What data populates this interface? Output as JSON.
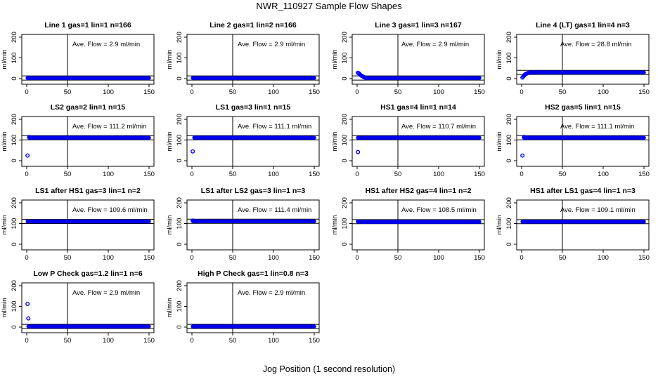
{
  "figure": {
    "title": "NWR_110927  Sample Flow Shapes",
    "bottom_label": "Jog Position (1 second resolution)"
  },
  "colors": {
    "points": "#0000ee",
    "axes": "#000000",
    "background": "#ffffff"
  },
  "chart_data": [
    {
      "type": "scatter",
      "title": "Line 1 gas=1 lin=1 n=166",
      "ylabel": "ml/min",
      "annotation": "Ave. Flow =  2.9  ml/min",
      "xlim": [
        0,
        150
      ],
      "ylim": [
        0,
        200
      ],
      "xticks": [
        0,
        50,
        100,
        150
      ],
      "yticks": [
        0,
        100,
        200
      ],
      "vline": 50,
      "hlines": [
        -7,
        13
      ],
      "baseline": 3,
      "points": []
    },
    {
      "type": "scatter",
      "title": "Line 2 gas=1 lin=2 n=166",
      "ylabel": "ml/min",
      "annotation": "Ave. Flow =  2.9  ml/min",
      "xlim": [
        0,
        150
      ],
      "ylim": [
        0,
        200
      ],
      "xticks": [
        0,
        50,
        100,
        150
      ],
      "yticks": [
        0,
        100,
        200
      ],
      "vline": 50,
      "hlines": [
        -7,
        13
      ],
      "baseline": 3,
      "points": []
    },
    {
      "type": "scatter",
      "title": "Line 3 gas=1 lin=3 n=167",
      "ylabel": "ml/min",
      "annotation": "Ave. Flow =  2.9  ml/min",
      "xlim": [
        0,
        150
      ],
      "ylim": [
        0,
        200
      ],
      "xticks": [
        0,
        50,
        100,
        150
      ],
      "yticks": [
        0,
        100,
        200
      ],
      "vline": 50,
      "hlines": [
        -7,
        13
      ],
      "baseline": 3,
      "points": [
        [
          1,
          28
        ],
        [
          2,
          26
        ],
        [
          3,
          22
        ],
        [
          4,
          18
        ],
        [
          5,
          15
        ],
        [
          6,
          12
        ],
        [
          7,
          10
        ],
        [
          8,
          8
        ],
        [
          9,
          6
        ],
        [
          10,
          5
        ]
      ]
    },
    {
      "type": "scatter",
      "title": "Line 4 (LT) gas=1 lin=4 n=3",
      "ylabel": "ml/min",
      "annotation": "Ave. Flow =  28.8  ml/min",
      "xlim": [
        0,
        150
      ],
      "ylim": [
        0,
        200
      ],
      "xticks": [
        0,
        50,
        100,
        150
      ],
      "yticks": [
        0,
        100,
        200
      ],
      "vline": 50,
      "hlines": [
        20,
        40
      ],
      "baseline": 30,
      "points": [
        [
          1,
          5
        ],
        [
          2,
          10
        ],
        [
          3,
          15
        ],
        [
          4,
          19
        ],
        [
          5,
          22
        ],
        [
          6,
          24
        ],
        [
          7,
          26
        ],
        [
          8,
          27
        ],
        [
          9,
          28
        ],
        [
          10,
          29
        ]
      ]
    },
    {
      "type": "scatter",
      "title": "LS2 gas=2 lin=1 n=15",
      "ylabel": "ml/min",
      "annotation": "Ave. Flow =  111.2  ml/min",
      "xlim": [
        0,
        150
      ],
      "ylim": [
        0,
        200
      ],
      "xticks": [
        0,
        50,
        100,
        150
      ],
      "yticks": [
        0,
        100,
        200
      ],
      "vline": 50,
      "hlines": [
        101,
        121
      ],
      "baseline": 111,
      "points": [
        [
          1,
          25
        ],
        [
          3,
          115
        ]
      ]
    },
    {
      "type": "scatter",
      "title": "LS1 gas=3 lin=1 n=15",
      "ylabel": "ml/min",
      "annotation": "Ave. Flow =  111.1  ml/min",
      "xlim": [
        0,
        150
      ],
      "ylim": [
        0,
        200
      ],
      "xticks": [
        0,
        50,
        100,
        150
      ],
      "yticks": [
        0,
        100,
        200
      ],
      "vline": 50,
      "hlines": [
        101,
        121
      ],
      "baseline": 111,
      "points": [
        [
          1,
          45
        ],
        [
          3,
          112
        ]
      ]
    },
    {
      "type": "scatter",
      "title": "HS1 gas=4 lin=1 n=14",
      "ylabel": "ml/min",
      "annotation": "Ave. Flow =  110.7  ml/min",
      "xlim": [
        0,
        150
      ],
      "ylim": [
        0,
        200
      ],
      "xticks": [
        0,
        50,
        100,
        150
      ],
      "yticks": [
        0,
        100,
        200
      ],
      "vline": 50,
      "hlines": [
        101,
        121
      ],
      "baseline": 111,
      "points": [
        [
          1,
          42
        ]
      ]
    },
    {
      "type": "scatter",
      "title": "HS2 gas=5 lin=1 n=15",
      "ylabel": "ml/min",
      "annotation": "Ave. Flow =  111.1  ml/min",
      "xlim": [
        0,
        150
      ],
      "ylim": [
        0,
        200
      ],
      "xticks": [
        0,
        50,
        100,
        150
      ],
      "yticks": [
        0,
        100,
        200
      ],
      "vline": 50,
      "hlines": [
        101,
        121
      ],
      "baseline": 111,
      "points": [
        [
          1,
          25
        ],
        [
          3,
          115
        ]
      ]
    },
    {
      "type": "scatter",
      "title": "LS1 after HS1 gas=3 lin=1 n=2",
      "ylabel": "ml/min",
      "annotation": "Ave. Flow =  109.6  ml/min",
      "xlim": [
        0,
        150
      ],
      "ylim": [
        0,
        200
      ],
      "xticks": [
        0,
        50,
        100,
        150
      ],
      "yticks": [
        0,
        100,
        200
      ],
      "vline": 50,
      "hlines": [
        100,
        120
      ],
      "baseline": 110,
      "points": []
    },
    {
      "type": "scatter",
      "title": "LS1 after LS2 gas=3 lin=1 n=3",
      "ylabel": "ml/min",
      "annotation": "Ave. Flow =  111.4  ml/min",
      "xlim": [
        0,
        150
      ],
      "ylim": [
        0,
        200
      ],
      "xticks": [
        0,
        50,
        100,
        150
      ],
      "yticks": [
        0,
        100,
        200
      ],
      "vline": 50,
      "hlines": [
        101,
        121
      ],
      "baseline": 111,
      "points": [
        [
          1,
          114
        ],
        [
          2,
          113
        ]
      ]
    },
    {
      "type": "scatter",
      "title": "HS1 after HS2 gas=4 lin=1 n=2",
      "ylabel": "ml/min",
      "annotation": "Ave. Flow =  108.5  ml/min",
      "xlim": [
        0,
        150
      ],
      "ylim": [
        0,
        200
      ],
      "xticks": [
        0,
        50,
        100,
        150
      ],
      "yticks": [
        0,
        100,
        200
      ],
      "vline": 50,
      "hlines": [
        99,
        119
      ],
      "baseline": 108,
      "points": [
        [
          1,
          110
        ],
        [
          2,
          109
        ]
      ]
    },
    {
      "type": "scatter",
      "title": "HS1 after LS1 gas=4 lin=1 n=3",
      "ylabel": "ml/min",
      "annotation": "Ave. Flow =  109.1  ml/min",
      "xlim": [
        0,
        150
      ],
      "ylim": [
        0,
        200
      ],
      "xticks": [
        0,
        50,
        100,
        150
      ],
      "yticks": [
        0,
        100,
        200
      ],
      "vline": 50,
      "hlines": [
        99,
        119
      ],
      "baseline": 109,
      "points": []
    },
    {
      "type": "scatter",
      "title": "Low P Check gas=1.2 lin=1 n=6",
      "ylabel": "ml/min",
      "annotation": "Ave. Flow =  2.9  ml/min",
      "xlim": [
        0,
        150
      ],
      "ylim": [
        0,
        200
      ],
      "xticks": [
        0,
        50,
        100,
        150
      ],
      "yticks": [
        0,
        100,
        200
      ],
      "vline": 50,
      "hlines": [
        -7,
        13
      ],
      "baseline": 3,
      "points": [
        [
          1,
          112
        ],
        [
          2,
          42
        ]
      ]
    },
    {
      "type": "scatter",
      "title": "High P Check gas=1 lin=0.8 n=3",
      "ylabel": "ml/min",
      "annotation": "Ave. Flow =  2.9  ml/min",
      "xlim": [
        0,
        150
      ],
      "ylim": [
        0,
        200
      ],
      "xticks": [
        0,
        50,
        100,
        150
      ],
      "yticks": [
        0,
        100,
        200
      ],
      "vline": 50,
      "hlines": [
        -7,
        13
      ],
      "baseline": 3,
      "points": []
    }
  ]
}
